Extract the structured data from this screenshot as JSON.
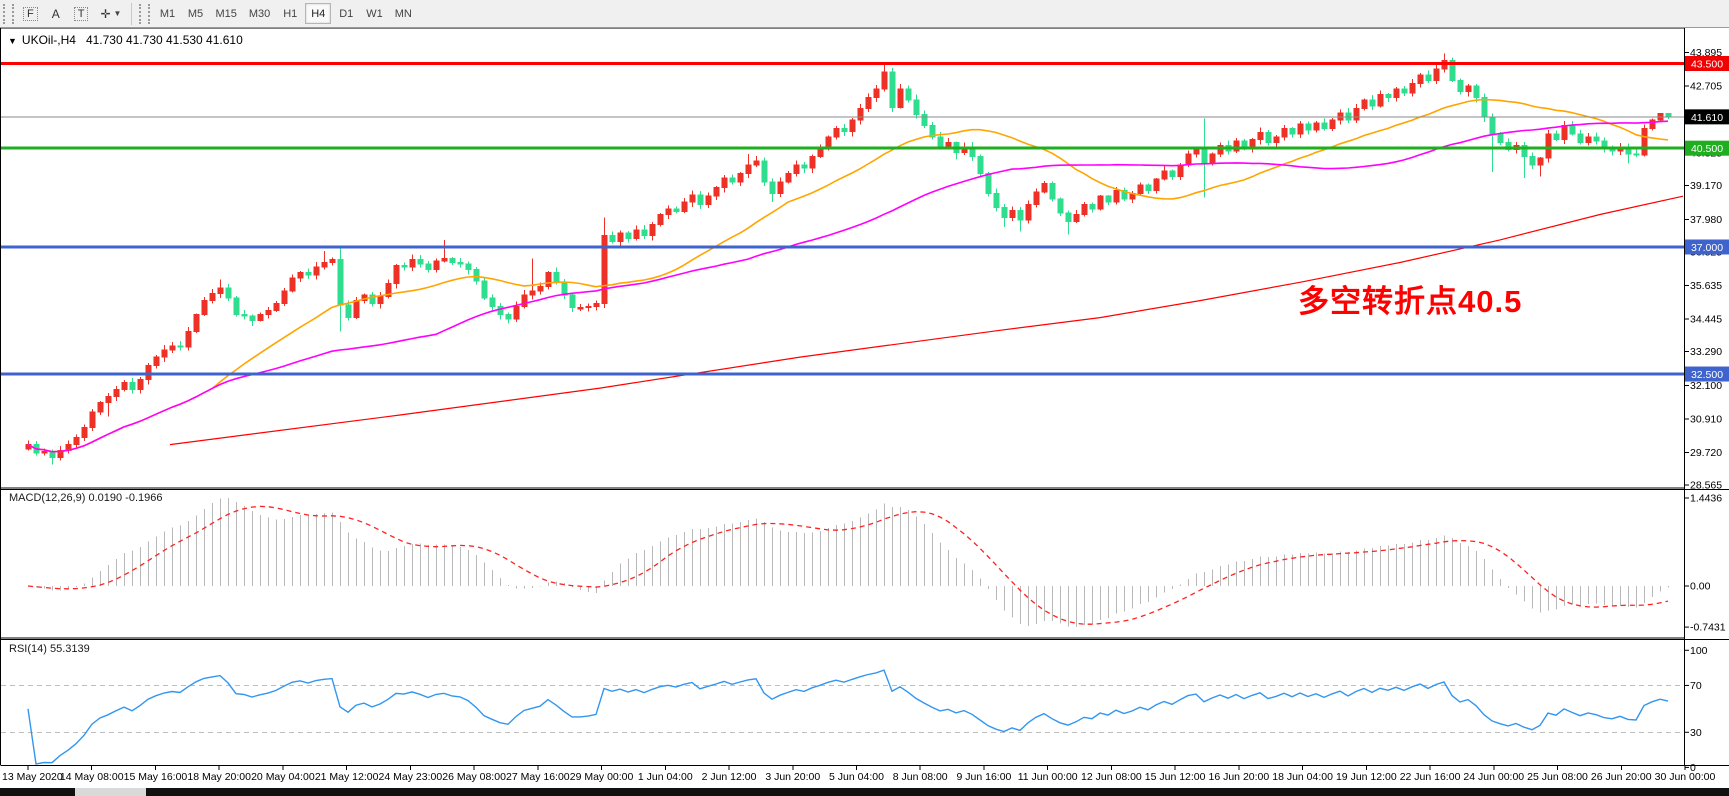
{
  "toolbar": {
    "tools": [
      {
        "id": "chart-window-properties",
        "glyph": "F",
        "dotted": true
      },
      {
        "id": "font-arrow-style",
        "glyph": "A",
        "dotted": false
      },
      {
        "id": "text-label-tool",
        "glyph": "T",
        "dotted": true
      },
      {
        "id": "draw-objects-tool",
        "glyph": "✛",
        "dotted": false,
        "caret": true
      }
    ],
    "timeframes": [
      "M1",
      "M5",
      "M15",
      "M30",
      "H1",
      "H4",
      "D1",
      "W1",
      "MN"
    ],
    "active_timeframe": "H4"
  },
  "chart": {
    "symbol_label": "UKOil-,H4",
    "ohlc": "41.730 41.730 41.530 41.610",
    "open": "41.730",
    "high": "41.730",
    "low": "41.530",
    "close": "41.610"
  },
  "annotation": {
    "text": "多空转折点40.5",
    "color": "#ff0000"
  },
  "indicators": {
    "macd": {
      "label": "MACD(12,26,9)",
      "values": "0.0190 -0.1966",
      "fast": 12,
      "slow": 26,
      "signal": 9,
      "axis_labels": [
        "1.4436",
        "0.00",
        "-0.7431"
      ],
      "histogram_color": "#b8b8b8",
      "signal_color": "#ff2222"
    },
    "rsi": {
      "label": "RSI(14)",
      "value": "55.3139",
      "period": 14,
      "axis_labels": [
        "100",
        "70",
        "30",
        "0"
      ],
      "levels": [
        70,
        30
      ],
      "line_color": "#3296f0",
      "level_color": "#bdbdbd"
    }
  },
  "price_axis": {
    "ticks": [
      43.895,
      42.705,
      41.515,
      40.325,
      39.17,
      37.98,
      36.825,
      35.635,
      34.445,
      33.29,
      32.1,
      30.91,
      29.72,
      28.565
    ]
  },
  "time_axis": {
    "labels": [
      "13 May 2020",
      "14 May 08:00",
      "15 May 16:00",
      "18 May 20:00",
      "20 May 04:00",
      "21 May 12:00",
      "24 May 23:00",
      "26 May 08:00",
      "27 May 16:00",
      "29 May 00:00",
      "1 Jun 04:00",
      "2 Jun 12:00",
      "3 Jun 20:00",
      "5 Jun 04:00",
      "8 Jun 08:00",
      "9 Jun 16:00",
      "11 Jun 00:00",
      "12 Jun 08:00",
      "15 Jun 12:00",
      "16 Jun 20:00",
      "18 Jun 04:00",
      "19 Jun 12:00",
      "22 Jun 16:00",
      "24 Jun 00:00",
      "25 Jun 08:00",
      "26 Jun 20:00",
      "30 Jun 00:00"
    ]
  },
  "hlines": [
    {
      "name": "resistance-43.5",
      "price": 43.5,
      "color": "#ff0000",
      "width": 3,
      "badge": "43.500",
      "badge_bg": "#f00000"
    },
    {
      "name": "pivot-40.5",
      "price": 40.5,
      "color": "#1fae1f",
      "width": 3,
      "badge": "40.500",
      "badge_bg": "#1fae1f"
    },
    {
      "name": "support-37.0",
      "price": 37.0,
      "color": "#3f63cc",
      "width": 3,
      "badge": "37.000",
      "badge_bg": "#3f63cc"
    },
    {
      "name": "support-32.5",
      "price": 32.5,
      "color": "#3f63cc",
      "width": 3,
      "badge": "32.500",
      "badge_bg": "#3f63cc"
    },
    {
      "name": "current-price",
      "price": 41.61,
      "color": "#8a8a8a",
      "width": 1,
      "badge": "41.610",
      "badge_bg": "#000000"
    }
  ],
  "moving_averages": [
    {
      "name": "ma-fast-orange",
      "period": 24,
      "color": "#ffa500"
    },
    {
      "name": "ma-slow-magenta",
      "period": 52,
      "color": "#ff00ff"
    }
  ],
  "trend_ma_red": {
    "color": "#ff0000",
    "points": [
      [
        170,
        30.0
      ],
      [
        400,
        31.05
      ],
      [
        600,
        32.0
      ],
      [
        800,
        33.1
      ],
      [
        1000,
        34.05
      ],
      [
        1100,
        34.5
      ],
      [
        1200,
        35.1
      ],
      [
        1300,
        35.75
      ],
      [
        1400,
        36.45
      ],
      [
        1500,
        37.25
      ],
      [
        1600,
        38.15
      ],
      [
        1683,
        38.8
      ]
    ]
  },
  "chart_data": {
    "type": "candlestick",
    "symbol": "UKOil-",
    "timeframe": "H4",
    "title": "UKOil-,H4 41.730 41.730 41.530 41.610",
    "up_color": "#ee3126",
    "down_color": "#2fdd8e",
    "price_range_visible": [
      28.565,
      43.895
    ],
    "last_candle": {
      "open": 41.73,
      "high": 41.73,
      "low": 41.53,
      "close": 41.61
    },
    "closes": [
      30.0,
      29.7,
      29.75,
      29.55,
      29.8,
      30.0,
      30.25,
      30.6,
      31.15,
      31.5,
      31.7,
      31.95,
      32.2,
      31.95,
      32.3,
      32.8,
      33.1,
      33.35,
      33.5,
      33.45,
      34.0,
      34.6,
      35.1,
      35.35,
      35.55,
      35.2,
      34.6,
      34.55,
      34.4,
      34.6,
      34.75,
      35.0,
      35.45,
      35.9,
      36.1,
      36.0,
      36.3,
      36.45,
      36.55,
      34.95,
      34.5,
      35.1,
      35.3,
      35.0,
      35.25,
      35.7,
      36.35,
      36.3,
      36.55,
      36.4,
      36.2,
      36.5,
      36.6,
      36.45,
      36.4,
      36.2,
      35.8,
      35.2,
      34.9,
      34.6,
      34.45,
      34.9,
      35.3,
      35.45,
      35.6,
      36.1,
      35.75,
      35.3,
      34.85,
      34.85,
      34.9,
      35.0,
      37.4,
      37.2,
      37.5,
      37.3,
      37.6,
      37.4,
      37.8,
      38.15,
      38.35,
      38.25,
      38.6,
      38.85,
      38.5,
      38.8,
      39.1,
      39.45,
      39.3,
      39.6,
      39.9,
      40.05,
      39.3,
      38.9,
      39.3,
      39.6,
      39.9,
      39.8,
      40.2,
      40.5,
      40.9,
      41.2,
      41.1,
      41.5,
      41.9,
      42.3,
      42.6,
      43.2,
      41.95,
      42.6,
      42.2,
      41.7,
      41.3,
      40.9,
      40.55,
      40.7,
      40.35,
      40.55,
      40.2,
      39.6,
      38.9,
      38.4,
      38.05,
      38.3,
      37.95,
      38.5,
      38.95,
      39.25,
      38.7,
      38.2,
      37.9,
      38.15,
      38.5,
      38.35,
      38.8,
      38.6,
      39.0,
      38.7,
      38.9,
      39.2,
      39.0,
      39.4,
      39.7,
      39.5,
      39.9,
      40.3,
      40.45,
      39.95,
      40.3,
      40.6,
      40.4,
      40.75,
      40.5,
      40.8,
      41.05,
      40.7,
      40.9,
      41.2,
      41.0,
      41.35,
      41.15,
      41.4,
      41.2,
      41.5,
      41.75,
      41.5,
      41.9,
      42.2,
      42.0,
      42.4,
      42.3,
      42.6,
      42.45,
      42.8,
      43.1,
      42.9,
      43.3,
      43.6,
      42.9,
      42.5,
      42.7,
      42.3,
      41.6,
      41.0,
      40.7,
      40.45,
      40.6,
      40.2,
      39.9,
      40.15,
      41.0,
      40.8,
      41.3,
      41.0,
      40.7,
      40.9,
      40.75,
      40.5,
      40.4,
      40.55,
      40.3,
      40.25,
      41.2,
      41.5,
      41.73,
      41.61
    ],
    "wick_overrides": {
      "3": {
        "l": 29.3
      },
      "10": {
        "l": 31.0
      },
      "24": {
        "h": 35.85
      },
      "28": {
        "l": 34.2
      },
      "37": {
        "h": 36.85
      },
      "39": {
        "h": 36.95,
        "l": 34.0
      },
      "52": {
        "h": 37.25
      },
      "63": {
        "h": 36.6
      },
      "72": {
        "h": 38.05
      },
      "90": {
        "h": 40.3
      },
      "93": {
        "l": 38.6
      },
      "107": {
        "h": 43.45
      },
      "111": {
        "h": 42.4
      },
      "116": {
        "l": 40.1
      },
      "122": {
        "l": 37.7
      },
      "124": {
        "l": 37.55
      },
      "130": {
        "l": 37.45
      },
      "147": {
        "h": 41.55,
        "l": 38.75
      },
      "177": {
        "h": 43.85
      },
      "183": {
        "l": 39.65
      },
      "187": {
        "l": 39.45
      },
      "189": {
        "l": 39.5
      },
      "200": {
        "l": 39.95
      },
      "204": {
        "h": 41.75,
        "l": 41.45
      },
      "205": {
        "h": 41.73,
        "l": 41.53
      }
    }
  }
}
